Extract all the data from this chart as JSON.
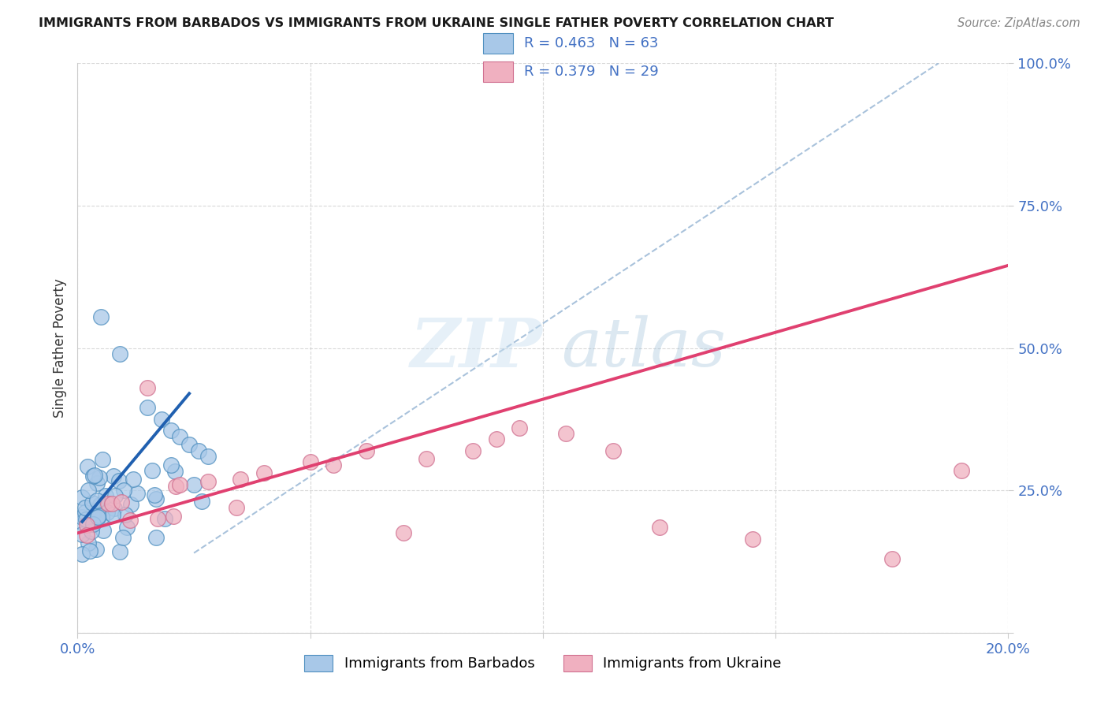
{
  "title": "IMMIGRANTS FROM BARBADOS VS IMMIGRANTS FROM UKRAINE SINGLE FATHER POVERTY CORRELATION CHART",
  "source": "Source: ZipAtlas.com",
  "ylabel": "Single Father Poverty",
  "xlim": [
    0.0,
    0.2
  ],
  "ylim": [
    0.0,
    1.0
  ],
  "blue_color": "#a8c8e8",
  "pink_color": "#f0b0c0",
  "blue_fill": "#5090c0",
  "blue_line_color": "#2060b0",
  "pink_line_color": "#e04070",
  "dash_color": "#a0bcd8",
  "label_blue": "Immigrants from Barbados",
  "label_pink": "Immigrants from Ukraine",
  "background_color": "#ffffff",
  "grid_color": "#d0d0d0",
  "tick_color": "#4472c4",
  "title_color": "#1a1a1a",
  "source_color": "#888888",
  "ylabel_color": "#333333",
  "legend_r_blue": "R = 0.463",
  "legend_n_blue": "N = 63",
  "legend_r_pink": "R = 0.379",
  "legend_n_pink": "N = 29",
  "blue_trend_x": [
    0.001,
    0.024
  ],
  "blue_trend_y": [
    0.195,
    0.42
  ],
  "pink_trend_x": [
    0.0,
    0.2
  ],
  "pink_trend_y": [
    0.175,
    0.645
  ],
  "dash_line_x": [
    0.025,
    0.185
  ],
  "dash_line_y": [
    0.14,
    1.0
  ]
}
